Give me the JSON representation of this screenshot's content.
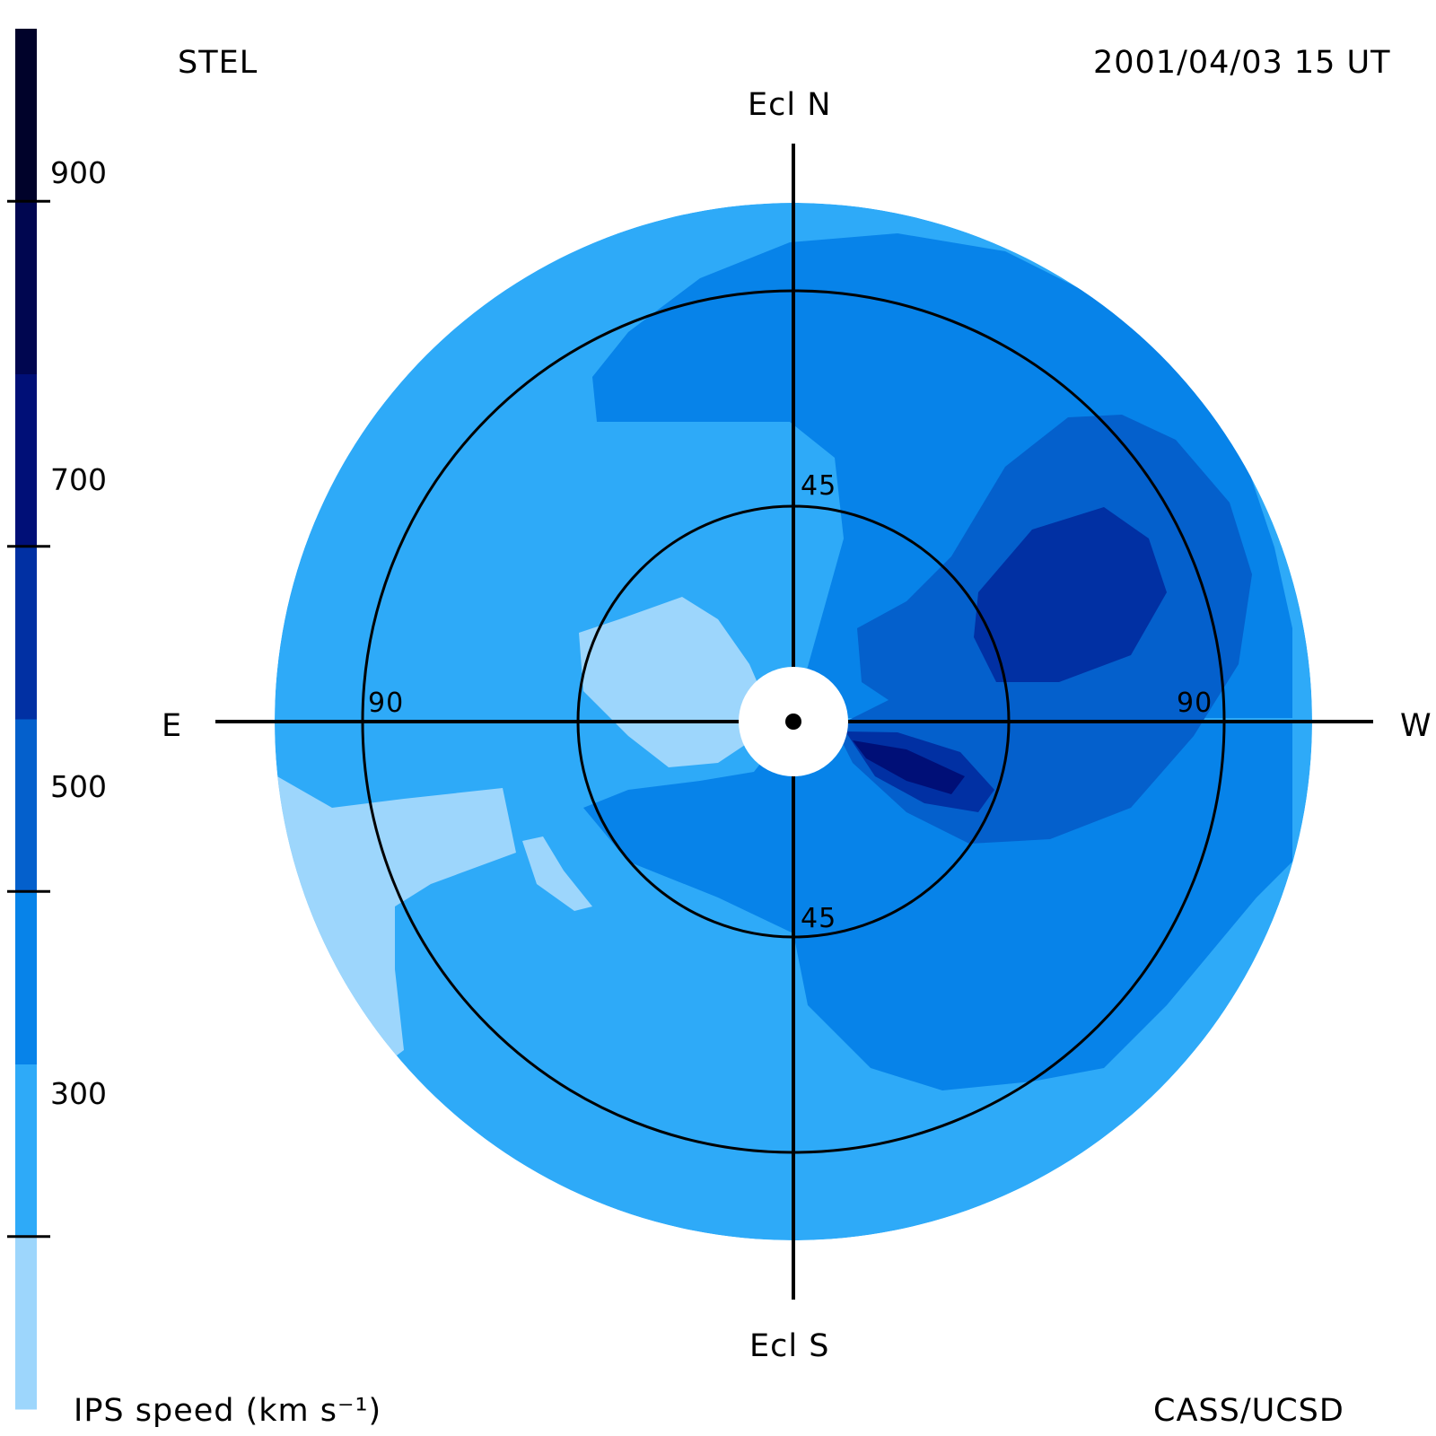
{
  "header": {
    "station": "STEL",
    "timestamp": "2001/04/03 15 UT"
  },
  "footer": {
    "colorbar_title": "IPS speed (km s⁻¹)",
    "credit": "CASS/UCSD"
  },
  "directions": {
    "north": "Ecl N",
    "south": "Ecl S",
    "east": "E",
    "west": "W"
  },
  "rings": {
    "inner_north": "45",
    "inner_south": "45",
    "outer_east": "90",
    "outer_west": "90"
  },
  "colorbar": {
    "unit": "km s⁻¹",
    "ticks": [
      "900",
      "700",
      "500",
      "300"
    ],
    "bands": [
      {
        "min": 200,
        "max": 300,
        "color": "#9dd6fc"
      },
      {
        "min": 300,
        "max": 400,
        "color": "#2eaaf8"
      },
      {
        "min": 400,
        "max": 500,
        "color": "#0783e9"
      },
      {
        "min": 500,
        "max": 600,
        "color": "#0460cc"
      },
      {
        "min": 600,
        "max": 700,
        "color": "#0130a3"
      },
      {
        "min": 700,
        "max": 800,
        "color": "#000f77"
      },
      {
        "min": 800,
        "max": 900,
        "color": "#000650"
      },
      {
        "min": 900,
        "max": 1000,
        "color": "#00022a"
      }
    ]
  },
  "colors": {
    "v250": "#9dd6fc",
    "v350": "#2eaaf8",
    "v450": "#0783e9",
    "v550": "#0460cc",
    "v650": "#0130a3",
    "v750": "#000f77",
    "occulter": "#ffffff",
    "lines": "#000000"
  }
}
